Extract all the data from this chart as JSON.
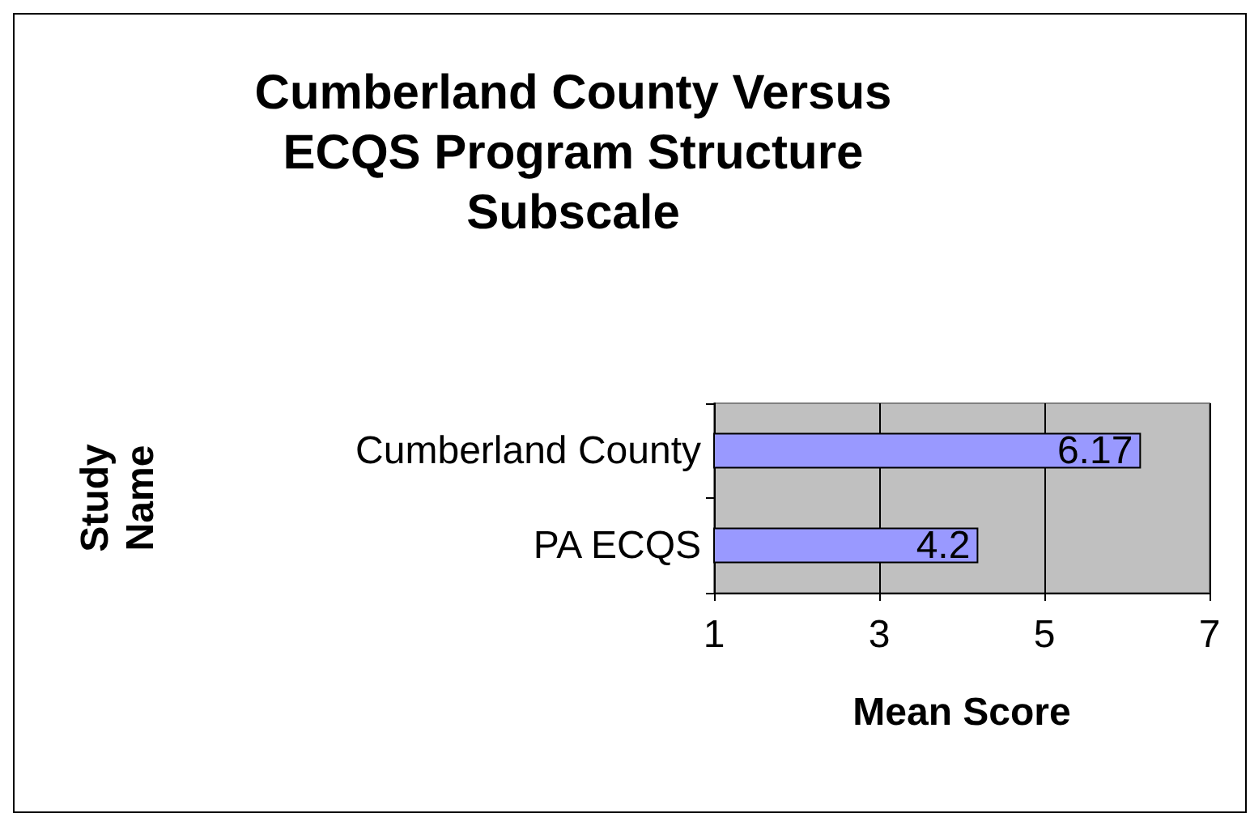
{
  "chart_data": {
    "type": "bar",
    "orientation": "horizontal",
    "title": "Cumberland County Versus\nECQS Program Structure\nSubscale",
    "xlabel": "Mean Score",
    "ylabel": "Study\nName",
    "categories": [
      "Cumberland County",
      "PA ECQS"
    ],
    "values": [
      6.17,
      4.2
    ],
    "color": "#9999ff",
    "data_labels": true,
    "xlim": [
      1,
      7
    ],
    "xticks": [
      1,
      3,
      5,
      7
    ],
    "grid": "x"
  }
}
